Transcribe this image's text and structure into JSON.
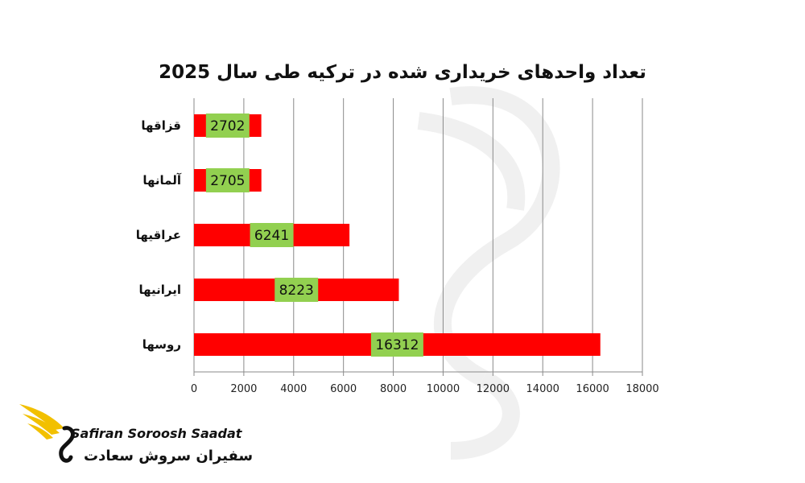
{
  "chart_data": {
    "type": "bar",
    "orientation": "horizontal",
    "title": "تعداد واحدهای خریداری شده در ترکیه طی سال 2025",
    "categories": [
      "قزاقها",
      "آلمانها",
      "عراقیها",
      "ایرانیها",
      "روسها"
    ],
    "values": [
      2702,
      2705,
      6241,
      8223,
      16312
    ],
    "xlim": [
      0,
      18000
    ],
    "xticks": [
      0,
      2000,
      4000,
      6000,
      8000,
      10000,
      12000,
      14000,
      16000,
      18000
    ],
    "grid": true,
    "bar_color": "#ff0000",
    "label_bg_color": "#92d050"
  },
  "logo": {
    "name_en": "Safiran Soroosh Saadat",
    "name_fa": "سفیران سروش سعادت",
    "accent_color": "#f2c000"
  }
}
